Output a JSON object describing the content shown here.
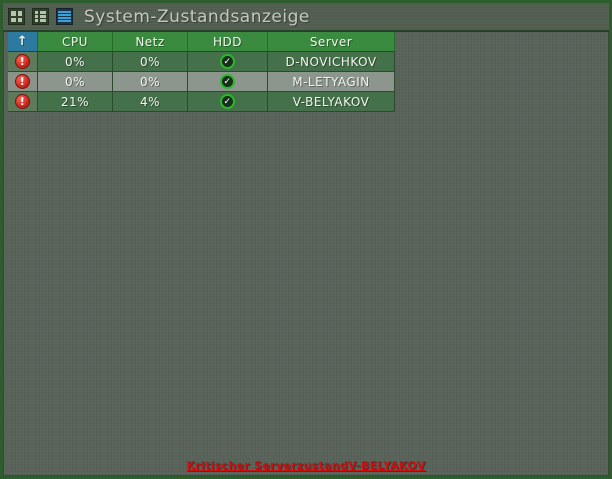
{
  "window": {
    "title": "System-Zustandsanzeige",
    "toolbar": {
      "grid_view_icon": "grid-view",
      "list_view_icon": "list-view",
      "stripes_view_icon": "details-view"
    }
  },
  "table": {
    "sort_icon": "↑",
    "columns": [
      "CPU",
      "Netz",
      "HDD",
      "Server"
    ],
    "rows": [
      {
        "status": "critical",
        "cpu": "0%",
        "netz": "0%",
        "hdd": "ok",
        "server": "D-NOVICHKOV"
      },
      {
        "status": "critical",
        "cpu": "0%",
        "netz": "0%",
        "hdd": "ok",
        "server": "M-LETYAGIN"
      },
      {
        "status": "critical",
        "cpu": "21%",
        "netz": "4%",
        "hdd": "ok",
        "server": "V-BELYAKOV"
      }
    ]
  },
  "icons": {
    "critical_glyph": "!",
    "ok_glyph": "✓"
  },
  "status_bar": {
    "message": "Kritischer ServerzustandV-BELYAKOV"
  },
  "colors": {
    "background": "#59635a",
    "frame": "#2d5c2d",
    "header_green": "#3a8b3f",
    "sort_blue": "#2d7aa1",
    "row_dark": "#44704a",
    "row_light": "#8c968c",
    "critical_red": "#cc1111",
    "ok_green": "#2bb82b"
  }
}
